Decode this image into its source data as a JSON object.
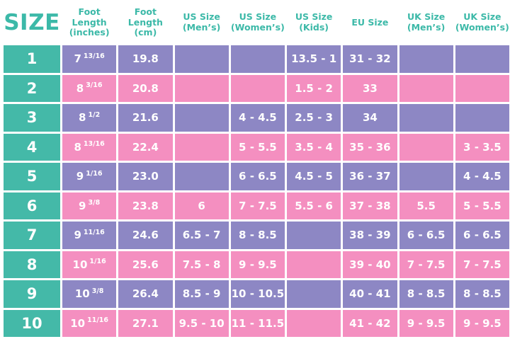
{
  "colors": {
    "teal": "#44B9A8",
    "purple": "#8D87C4",
    "pink": "#F48FC0",
    "header_text": "#3CB9A8",
    "cell_text": "#FFFFFF",
    "background": "#FFFFFF"
  },
  "chart_data": {
    "type": "table",
    "title": "SIZE",
    "columns": [
      {
        "label": "Foot Length (inches)",
        "line1": "Foot Length",
        "line2": "(inches)"
      },
      {
        "label": "Foot Length (cm)",
        "line1": "Foot Length",
        "line2": "(cm)"
      },
      {
        "label": "US Size (Men’s)",
        "line1": "US Size",
        "line2": "(Men’s)"
      },
      {
        "label": "US Size (Women’s)",
        "line1": "US Size",
        "line2": "(Women’s)"
      },
      {
        "label": "US Size (Kids)",
        "line1": "US Size",
        "line2": "(Kids)"
      },
      {
        "label": "EU Size",
        "line1": "EU Size",
        "line2": ""
      },
      {
        "label": "UK Size (Men’s)",
        "line1": "UK Size",
        "line2": "(Men’s)"
      },
      {
        "label": "UK Size (Women’s)",
        "line1": "UK Size",
        "line2": "(Women’s)"
      }
    ],
    "rows": [
      {
        "size": "1",
        "inches": "7 13/16",
        "inches_whole": "7",
        "inches_frac": "13/16",
        "cm": "19.8",
        "us_mens": "",
        "us_womens": "",
        "us_kids": "13.5 - 1",
        "eu": "31 - 32",
        "uk_mens": "",
        "uk_womens": ""
      },
      {
        "size": "2",
        "inches": "8 3/16",
        "inches_whole": "8",
        "inches_frac": "3/16",
        "cm": "20.8",
        "us_mens": "",
        "us_womens": "",
        "us_kids": "1.5 - 2",
        "eu": "33",
        "uk_mens": "",
        "uk_womens": ""
      },
      {
        "size": "3",
        "inches": "8 1/2",
        "inches_whole": "8",
        "inches_frac": "1/2",
        "cm": "21.6",
        "us_mens": "",
        "us_womens": "4 - 4.5",
        "us_kids": "2.5 - 3",
        "eu": "34",
        "uk_mens": "",
        "uk_womens": ""
      },
      {
        "size": "4",
        "inches": "8 13/16",
        "inches_whole": "8",
        "inches_frac": "13/16",
        "cm": "22.4",
        "us_mens": "",
        "us_womens": "5 - 5.5",
        "us_kids": "3.5 - 4",
        "eu": "35 - 36",
        "uk_mens": "",
        "uk_womens": "3 - 3.5"
      },
      {
        "size": "5",
        "inches": "9 1/16",
        "inches_whole": "9",
        "inches_frac": "1/16",
        "cm": "23.0",
        "us_mens": "",
        "us_womens": "6 - 6.5",
        "us_kids": "4.5 - 5",
        "eu": "36 - 37",
        "uk_mens": "",
        "uk_womens": "4 - 4.5"
      },
      {
        "size": "6",
        "inches": "9 3/8",
        "inches_whole": "9",
        "inches_frac": "3/8",
        "cm": "23.8",
        "us_mens": "6",
        "us_womens": "7 - 7.5",
        "us_kids": "5.5 - 6",
        "eu": "37 - 38",
        "uk_mens": "5.5",
        "uk_womens": "5 - 5.5"
      },
      {
        "size": "7",
        "inches": "9 11/16",
        "inches_whole": "9",
        "inches_frac": "11/16",
        "cm": "24.6",
        "us_mens": "6.5 - 7",
        "us_womens": "8 - 8.5",
        "us_kids": "",
        "eu": "38 - 39",
        "uk_mens": "6 - 6.5",
        "uk_womens": "6 - 6.5"
      },
      {
        "size": "8",
        "inches": "10 1/16",
        "inches_whole": "10",
        "inches_frac": "1/16",
        "cm": "25.6",
        "us_mens": "7.5 - 8",
        "us_womens": "9 - 9.5",
        "us_kids": "",
        "eu": "39 - 40",
        "uk_mens": "7 - 7.5",
        "uk_womens": "7 - 7.5"
      },
      {
        "size": "9",
        "inches": "10 3/8",
        "inches_whole": "10",
        "inches_frac": "3/8",
        "cm": "26.4",
        "us_mens": "8.5 - 9",
        "us_womens": "10 - 10.5",
        "us_kids": "",
        "eu": "40 - 41",
        "uk_mens": "8 - 8.5",
        "uk_womens": "8 - 8.5"
      },
      {
        "size": "10",
        "inches": "10 11/16",
        "inches_whole": "10",
        "inches_frac": "11/16",
        "cm": "27.1",
        "us_mens": "9.5 - 10",
        "us_womens": "11 - 11.5",
        "us_kids": "",
        "eu": "41 - 42",
        "uk_mens": "9 - 9.5",
        "uk_womens": "9 - 9.5"
      }
    ]
  }
}
